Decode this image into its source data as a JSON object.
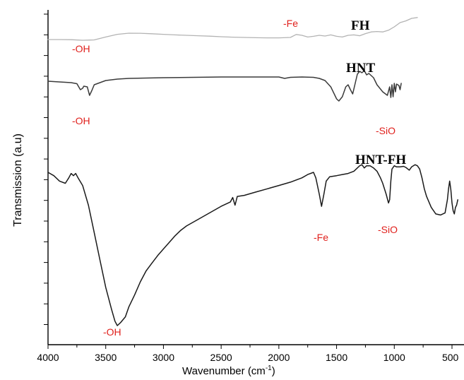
{
  "chart_data": {
    "type": "line",
    "xlabel": "Wavenumber (cm",
    "xlabel_sup": "-1",
    "xlabel_tail": ")",
    "ylabel": "Transmission (a.u)",
    "xlim": [
      4000,
      450
    ],
    "x_reversed": true,
    "x_ticks": [
      4000,
      3500,
      3000,
      2500,
      2000,
      1500,
      1000,
      500
    ],
    "y_ticks": "unlabeled",
    "grid": false,
    "series": [
      {
        "name": "FH",
        "color": "#b3b3b3",
        "points": [
          [
            4000,
            0.0
          ],
          [
            3900,
            0.0
          ],
          [
            3800,
            -0.02
          ],
          [
            3700,
            -0.08
          ],
          [
            3600,
            -0.04
          ],
          [
            3500,
            0.3
          ],
          [
            3400,
            0.62
          ],
          [
            3300,
            0.75
          ],
          [
            3200,
            0.74
          ],
          [
            3100,
            0.68
          ],
          [
            3000,
            0.62
          ],
          [
            2900,
            0.55
          ],
          [
            2800,
            0.5
          ],
          [
            2700,
            0.45
          ],
          [
            2600,
            0.4
          ],
          [
            2500,
            0.33
          ],
          [
            2400,
            0.28
          ],
          [
            2300,
            0.25
          ],
          [
            2200,
            0.22
          ],
          [
            2100,
            0.2
          ],
          [
            2000,
            0.2
          ],
          [
            1900,
            0.25
          ],
          [
            1850,
            0.6
          ],
          [
            1800,
            0.5
          ],
          [
            1750,
            0.3
          ],
          [
            1700,
            0.38
          ],
          [
            1650,
            0.5
          ],
          [
            1600,
            0.42
          ],
          [
            1550,
            0.55
          ],
          [
            1500,
            0.38
          ],
          [
            1450,
            0.3
          ],
          [
            1400,
            0.5
          ],
          [
            1350,
            0.55
          ],
          [
            1300,
            0.45
          ],
          [
            1250,
            0.7
          ],
          [
            1200,
            0.9
          ],
          [
            1150,
            0.95
          ],
          [
            1100,
            0.9
          ],
          [
            1050,
            1.1
          ],
          [
            1000,
            1.5
          ],
          [
            950,
            2.0
          ],
          [
            900,
            2.2
          ],
          [
            850,
            2.5
          ],
          [
            800,
            2.6
          ]
        ]
      },
      {
        "name": "HNT",
        "color": "#3a3a3a",
        "points": [
          [
            4000,
            0.0
          ],
          [
            3900,
            -0.1
          ],
          [
            3800,
            -0.2
          ],
          [
            3750,
            -0.35
          ],
          [
            3720,
            -1.2
          ],
          [
            3700,
            -1.0
          ],
          [
            3690,
            -0.7
          ],
          [
            3660,
            -0.8
          ],
          [
            3640,
            -2.0
          ],
          [
            3620,
            -1.3
          ],
          [
            3600,
            -0.5
          ],
          [
            3500,
            0.1
          ],
          [
            3400,
            0.3
          ],
          [
            3300,
            0.4
          ],
          [
            3000,
            0.5
          ],
          [
            2500,
            0.6
          ],
          [
            2000,
            0.6
          ],
          [
            1950,
            0.4
          ],
          [
            1900,
            0.55
          ],
          [
            1800,
            0.6
          ],
          [
            1700,
            0.55
          ],
          [
            1650,
            0.4
          ],
          [
            1600,
            0.1
          ],
          [
            1550,
            -0.8
          ],
          [
            1500,
            -2.5
          ],
          [
            1480,
            -2.8
          ],
          [
            1450,
            -2.2
          ],
          [
            1420,
            -0.8
          ],
          [
            1400,
            -0.5
          ],
          [
            1380,
            -1.2
          ],
          [
            1360,
            -1.8
          ],
          [
            1340,
            -0.4
          ],
          [
            1320,
            1.0
          ],
          [
            1300,
            1.4
          ],
          [
            1280,
            1.2
          ],
          [
            1260,
            1.5
          ],
          [
            1240,
            0.9
          ],
          [
            1220,
            1.1
          ],
          [
            1200,
            0.8
          ],
          [
            1180,
            0.5
          ],
          [
            1150,
            -0.5
          ],
          [
            1100,
            -1.5
          ],
          [
            1060,
            -2.0
          ],
          [
            1040,
            -0.8
          ],
          [
            1030,
            -2.3
          ],
          [
            1020,
            -0.5
          ],
          [
            1010,
            -2.2
          ],
          [
            1000,
            -0.3
          ],
          [
            990,
            -1.5
          ],
          [
            980,
            -0.4
          ],
          [
            960,
            -0.6
          ],
          [
            950,
            -1.2
          ],
          [
            940,
            -0.3
          ]
        ]
      },
      {
        "name": "HNT-FH",
        "color": "#1a1a1a",
        "points": [
          [
            4000,
            0.0
          ],
          [
            3950,
            -0.3
          ],
          [
            3900,
            -0.8
          ],
          [
            3850,
            -1.0
          ],
          [
            3820,
            -0.5
          ],
          [
            3800,
            -0.1
          ],
          [
            3780,
            -0.3
          ],
          [
            3760,
            -0.1
          ],
          [
            3740,
            -0.5
          ],
          [
            3700,
            -1.2
          ],
          [
            3650,
            -3.0
          ],
          [
            3600,
            -5.5
          ],
          [
            3550,
            -8.0
          ],
          [
            3500,
            -10.5
          ],
          [
            3450,
            -12.5
          ],
          [
            3420,
            -13.6
          ],
          [
            3400,
            -14.0
          ],
          [
            3370,
            -13.7
          ],
          [
            3330,
            -13.2
          ],
          [
            3300,
            -12.3
          ],
          [
            3250,
            -11.2
          ],
          [
            3200,
            -10.0
          ],
          [
            3150,
            -9.0
          ],
          [
            3100,
            -8.3
          ],
          [
            3050,
            -7.6
          ],
          [
            3000,
            -7.0
          ],
          [
            2950,
            -6.4
          ],
          [
            2900,
            -5.8
          ],
          [
            2850,
            -5.3
          ],
          [
            2800,
            -4.9
          ],
          [
            2700,
            -4.3
          ],
          [
            2600,
            -3.7
          ],
          [
            2500,
            -3.1
          ],
          [
            2420,
            -2.7
          ],
          [
            2400,
            -2.3
          ],
          [
            2380,
            -3.0
          ],
          [
            2360,
            -2.2
          ],
          [
            2300,
            -2.1
          ],
          [
            2200,
            -1.8
          ],
          [
            2100,
            -1.5
          ],
          [
            2000,
            -1.2
          ],
          [
            1900,
            -0.9
          ],
          [
            1800,
            -0.5
          ],
          [
            1750,
            -0.2
          ],
          [
            1700,
            0.0
          ],
          [
            1680,
            -0.5
          ],
          [
            1650,
            -2.0
          ],
          [
            1630,
            -3.1
          ],
          [
            1610,
            -2.0
          ],
          [
            1590,
            -0.8
          ],
          [
            1560,
            -0.4
          ],
          [
            1500,
            -0.3
          ],
          [
            1450,
            -0.2
          ],
          [
            1400,
            -0.1
          ],
          [
            1350,
            0.1
          ],
          [
            1300,
            0.6
          ],
          [
            1280,
            0.7
          ],
          [
            1260,
            0.4
          ],
          [
            1240,
            0.6
          ],
          [
            1210,
            0.6
          ],
          [
            1180,
            0.4
          ],
          [
            1150,
            0.1
          ],
          [
            1120,
            -0.5
          ],
          [
            1100,
            -1.0
          ],
          [
            1070,
            -2.0
          ],
          [
            1050,
            -2.8
          ],
          [
            1040,
            -2.5
          ],
          [
            1030,
            -0.8
          ],
          [
            1020,
            0.3
          ],
          [
            1000,
            0.6
          ],
          [
            980,
            0.5
          ],
          [
            950,
            0.5
          ],
          [
            920,
            0.55
          ],
          [
            900,
            0.45
          ],
          [
            870,
            0.2
          ],
          [
            850,
            0.5
          ],
          [
            820,
            0.7
          ],
          [
            800,
            0.6
          ],
          [
            780,
            0.3
          ],
          [
            760,
            -0.5
          ],
          [
            740,
            -1.5
          ],
          [
            720,
            -2.2
          ],
          [
            680,
            -3.2
          ],
          [
            640,
            -3.8
          ],
          [
            600,
            -3.9
          ],
          [
            560,
            -3.7
          ],
          [
            540,
            -2.5
          ],
          [
            530,
            -1.5
          ],
          [
            520,
            -0.8
          ],
          [
            510,
            -1.6
          ],
          [
            500,
            -2.8
          ],
          [
            490,
            -3.5
          ],
          [
            480,
            -3.8
          ],
          [
            470,
            -3.2
          ],
          [
            460,
            -3.0
          ],
          [
            450,
            -2.5
          ]
        ]
      }
    ],
    "annotations": [
      {
        "text": "-OH",
        "series": "FH"
      },
      {
        "text": "-Fe",
        "series": "FH"
      },
      {
        "text": "-OH",
        "series": "HNT"
      },
      {
        "text": "-SiO",
        "series": "HNT"
      },
      {
        "text": "-OH",
        "series": "HNT-FH"
      },
      {
        "text": "-Fe",
        "series": "HNT-FH"
      },
      {
        "text": "-SiO",
        "series": "HNT-FH"
      }
    ],
    "annotation_color": "#e0201c"
  }
}
